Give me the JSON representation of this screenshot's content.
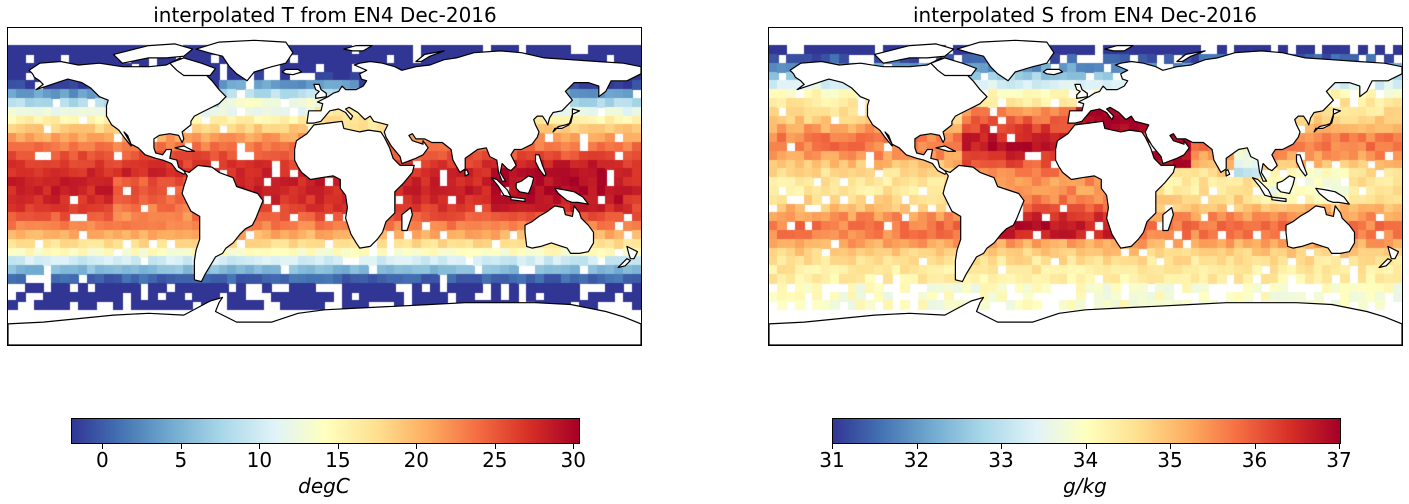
{
  "panels": [
    {
      "title": "interpolated T from EN4 Dec-2016",
      "field": "temperature",
      "colorbar": {
        "label": "degC",
        "min": -2,
        "max": 30.3,
        "ticks": [
          0,
          5,
          10,
          15,
          20,
          25,
          30
        ],
        "tick_labels": [
          "0",
          "5",
          "10",
          "15",
          "20",
          "25",
          "30"
        ]
      }
    },
    {
      "title": "interpolated S from EN4 Dec-2016",
      "field": "salinity",
      "colorbar": {
        "label": "g/kg",
        "min": 31,
        "max": 37,
        "ticks": [
          31,
          32,
          33,
          34,
          35,
          36,
          37
        ],
        "tick_labels": [
          "31",
          "32",
          "33",
          "34",
          "35",
          "36",
          "37"
        ]
      }
    }
  ],
  "colormap": {
    "name": "RdYlBu_r",
    "stops": [
      "#313695",
      "#4575b4",
      "#74add1",
      "#abd9e9",
      "#e0f3f8",
      "#ffffbf",
      "#fee090",
      "#fdae61",
      "#f46d43",
      "#d73027",
      "#a50026"
    ]
  },
  "projection": "PlateCarree",
  "missing_color": "#ffffff",
  "coastline_color": "#000000"
}
